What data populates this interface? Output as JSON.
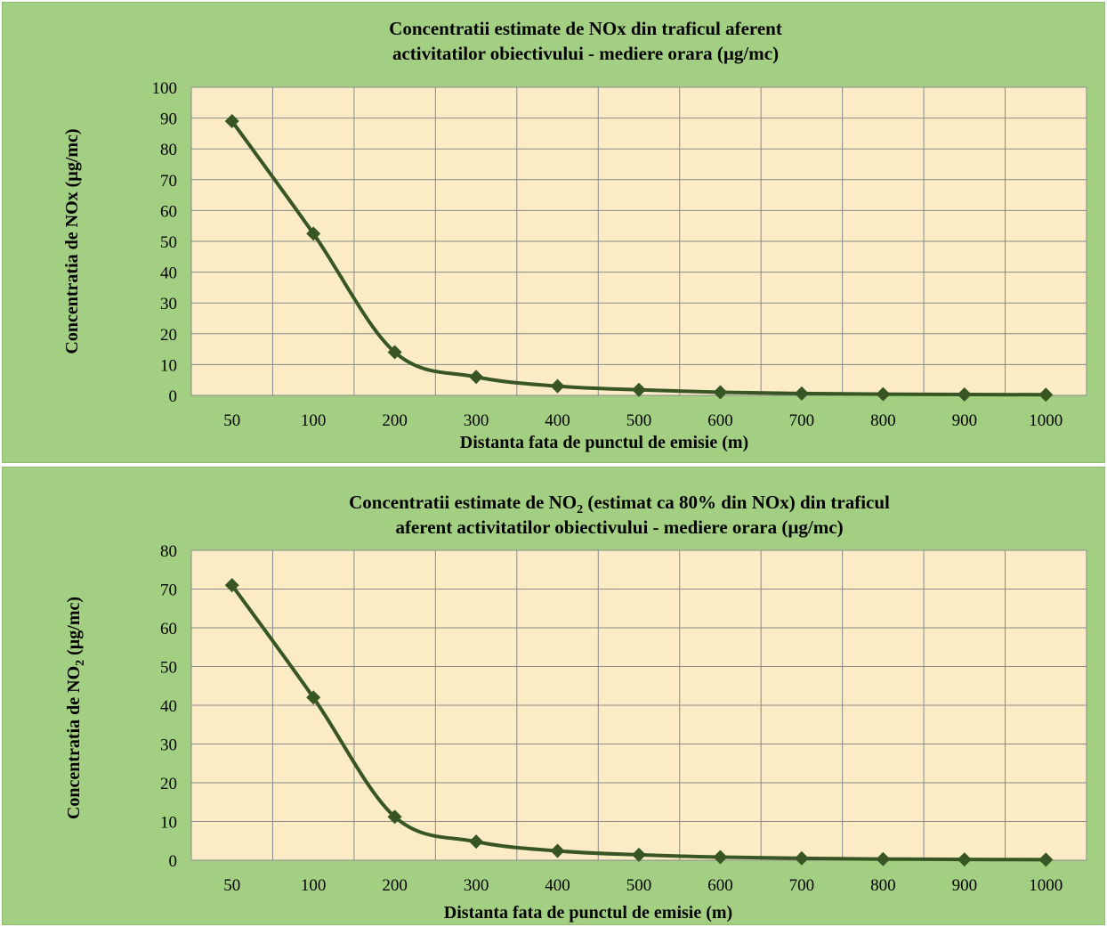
{
  "chart_data": [
    {
      "type": "line",
      "title_line1": "Concentratii estimate de NOx din traficul aferent",
      "title_line2": "activitatilor obiectivului - mediere orara (µg/mc)",
      "xlabel": "Distanta fata de punctul de emisie (m)",
      "ylabel": "Concentratia de  NOx (µg/mc)",
      "categories": [
        "50",
        "100",
        "200",
        "300",
        "400",
        "500",
        "600",
        "700",
        "800",
        "900",
        "1000"
      ],
      "values": [
        89,
        52.5,
        14,
        6,
        3,
        1.8,
        1,
        0.6,
        0.4,
        0.3,
        0.2
      ],
      "ylim": [
        0,
        100
      ],
      "yticks": [
        "0",
        "10",
        "20",
        "30",
        "40",
        "50",
        "60",
        "70",
        "80",
        "90",
        "100"
      ],
      "grid": true,
      "colors": {
        "line": "#375623",
        "plot_bg": "#fbecc6",
        "panel_bg": "#a3cf83",
        "grid": "#8a8a8a"
      }
    },
    {
      "type": "line",
      "title_line1": "Concentratii estimate de NO",
      "title_line1_sub": "2",
      "title_line1_rest": " (estimat ca 80% din NOx) din traficul",
      "title_line2": "aferent activitatilor obiectivului - mediere orara (µg/mc)",
      "xlabel": "Distanta fata de punctul de emisie (m)",
      "ylabel_part1": "Concentratia de  NO",
      "ylabel_sub": "2",
      "ylabel_part2": " (µg/mc)",
      "categories": [
        "50",
        "100",
        "200",
        "300",
        "400",
        "500",
        "600",
        "700",
        "800",
        "900",
        "1000"
      ],
      "values": [
        71,
        42,
        11.2,
        4.8,
        2.4,
        1.4,
        0.8,
        0.5,
        0.3,
        0.2,
        0.15
      ],
      "ylim": [
        0,
        80
      ],
      "yticks": [
        "0",
        "10",
        "20",
        "30",
        "40",
        "50",
        "60",
        "70",
        "80"
      ],
      "grid": true,
      "colors": {
        "line": "#375623",
        "plot_bg": "#fbecc6",
        "panel_bg": "#a3cf83",
        "grid": "#8a8a8a"
      }
    }
  ]
}
